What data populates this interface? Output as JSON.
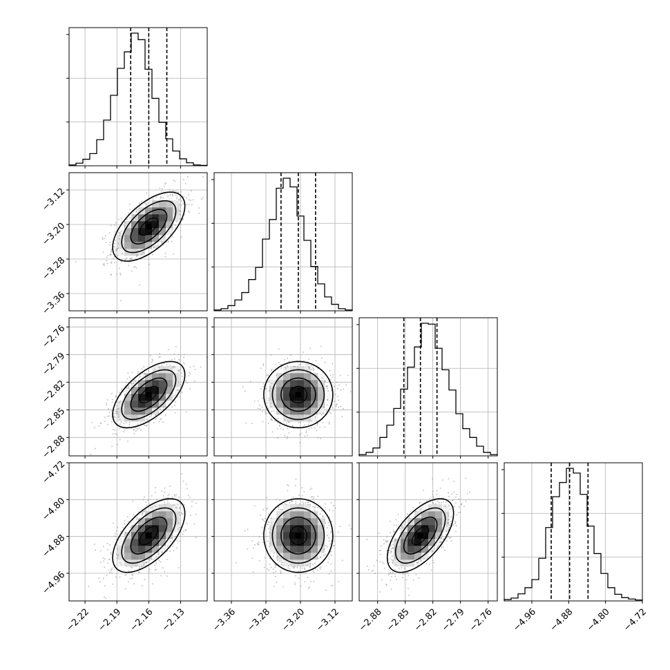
{
  "chart_data": {
    "type": "corner",
    "grid": true,
    "legend": "none",
    "parameters": [
      {
        "range": [
          -2.235,
          -2.105
        ],
        "ticks": [
          -2.22,
          -2.19,
          -2.16,
          -2.13
        ],
        "tick_labels": [
          "−2.22",
          "−2.19",
          "−2.16",
          "−2.13"
        ],
        "quantiles": [
          -2.177,
          -2.16,
          -2.143
        ],
        "hist_edges": [
          -2.235,
          -2.2285,
          -2.222,
          -2.2155,
          -2.209,
          -2.2025,
          -2.196,
          -2.1895,
          -2.183,
          -2.1765,
          -2.17,
          -2.1635,
          -2.157,
          -2.1505,
          -2.144,
          -2.1375,
          -2.131,
          -2.1245,
          -2.118,
          -2.1115,
          -2.105
        ],
        "hist_counts": [
          2,
          6,
          15,
          28,
          60,
          105,
          162,
          224,
          262,
          305,
          290,
          222,
          155,
          100,
          62,
          34,
          16,
          7,
          2,
          1
        ]
      },
      {
        "range": [
          -3.4,
          -3.08
        ],
        "ticks": [
          -3.36,
          -3.28,
          -3.2,
          -3.12
        ],
        "tick_labels": [
          "−3.36",
          "−3.28",
          "−3.20",
          "−3.12"
        ],
        "quantiles": [
          -3.245,
          -3.205,
          -3.165
        ],
        "hist_edges": [
          -3.4,
          -3.384,
          -3.368,
          -3.352,
          -3.336,
          -3.32,
          -3.304,
          -3.288,
          -3.272,
          -3.256,
          -3.24,
          -3.224,
          -3.208,
          -3.192,
          -3.176,
          -3.16,
          -3.144,
          -3.128,
          -3.112,
          -3.096,
          -3.08
        ],
        "hist_counts": [
          2,
          5,
          12,
          25,
          42,
          72,
          100,
          165,
          210,
          282,
          305,
          285,
          218,
          162,
          102,
          62,
          32,
          15,
          5,
          2
        ]
      },
      {
        "range": [
          -2.9,
          -2.75
        ],
        "ticks": [
          -2.88,
          -2.85,
          -2.82,
          -2.79,
          -2.76
        ],
        "tick_labels": [
          "−2.88",
          "−2.85",
          "−2.82",
          "−2.79",
          "−2.76"
        ],
        "quantiles": [
          -2.8515,
          -2.8335,
          -2.8155
        ],
        "hist_edges": [
          -2.9,
          -2.8925,
          -2.885,
          -2.8775,
          -2.87,
          -2.8625,
          -2.855,
          -2.8475,
          -2.84,
          -2.8325,
          -2.825,
          -2.8175,
          -2.81,
          -2.8025,
          -2.795,
          -2.7875,
          -2.78,
          -2.7725,
          -2.765,
          -2.7575,
          -2.75
        ],
        "hist_counts": [
          3,
          8,
          18,
          42,
          70,
          108,
          152,
          202,
          248,
          302,
          300,
          245,
          196,
          150,
          96,
          62,
          42,
          22,
          8,
          3
        ]
      },
      {
        "range": [
          -5.02,
          -4.72
        ],
        "ticks": [
          -4.96,
          -4.88,
          -4.8,
          -4.72
        ],
        "tick_labels": [
          "−4.96",
          "−4.88",
          "−4.80",
          "−4.72"
        ],
        "quantiles": [
          -4.918,
          -4.878,
          -4.838
        ],
        "hist_edges": [
          -5.02,
          -5.005,
          -4.99,
          -4.975,
          -4.96,
          -4.945,
          -4.93,
          -4.915,
          -4.9,
          -4.885,
          -4.87,
          -4.855,
          -4.84,
          -4.825,
          -4.81,
          -4.795,
          -4.78,
          -4.765,
          -4.75,
          -4.735,
          -4.72
        ],
        "hist_counts": [
          3,
          6,
          15,
          28,
          45,
          90,
          155,
          220,
          250,
          280,
          270,
          225,
          158,
          100,
          58,
          28,
          14,
          7,
          4,
          2
        ]
      }
    ],
    "correlations": [
      [
        1.0,
        0.6,
        0.6,
        0.6
      ],
      [
        0.6,
        1.0,
        0.0,
        0.0
      ],
      [
        0.6,
        0.0,
        1.0,
        0.6
      ],
      [
        0.6,
        0.0,
        0.6,
        1.0
      ]
    ]
  }
}
